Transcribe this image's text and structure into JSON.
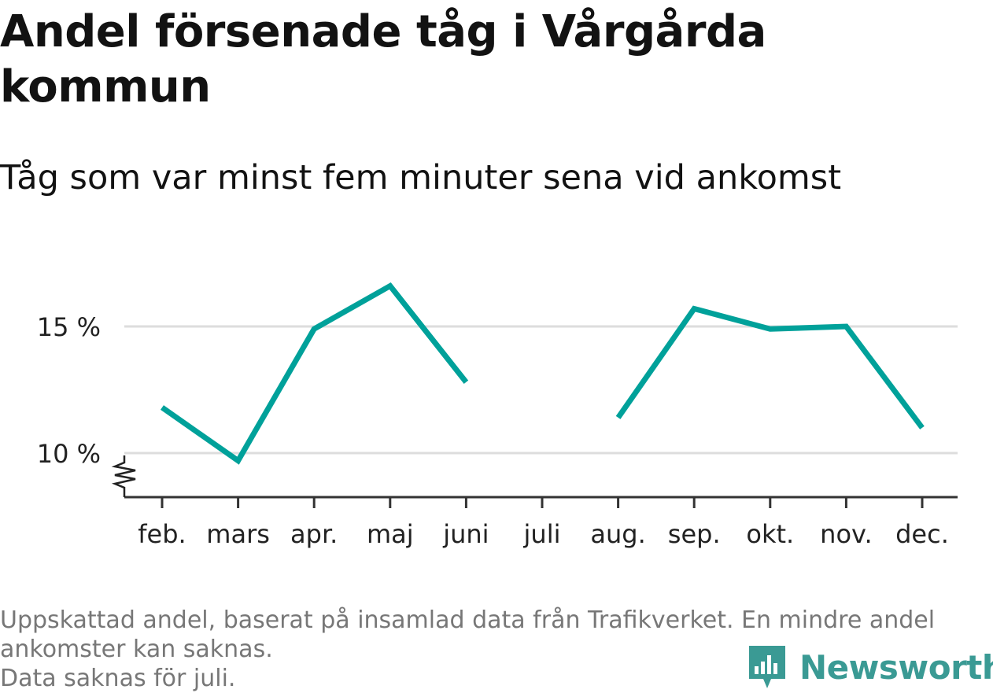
{
  "title": "Andel försenade tåg i Vårgårda kommun",
  "subtitle": "Tåg som var minst fem minuter sena vid ankomst",
  "footnote": {
    "line1": "Uppskattad andel, baserat på insamlad data från Trafikverket. En mindre andel",
    "line2": "ankomster kan saknas.",
    "line3": "Data saknas för juli."
  },
  "logo": {
    "text": "Newsworthy",
    "icon": "newsworthy-bar-chart-icon",
    "color": "#3a9a94"
  },
  "colors": {
    "line": "#00a19a",
    "grid": "#dddddd",
    "axis": "#333333"
  },
  "chart_data": {
    "type": "line",
    "categories": [
      "feb.",
      "mars",
      "apr.",
      "maj",
      "juni",
      "juli",
      "aug.",
      "sep.",
      "okt.",
      "nov.",
      "dec."
    ],
    "series": [
      {
        "values": [
          11.8,
          9.7,
          14.9,
          16.6,
          12.8,
          null,
          11.4,
          15.7,
          14.9,
          15.0,
          11.0
        ]
      }
    ],
    "yticks": [
      10,
      15
    ],
    "ytick_labels": [
      "10 %",
      "15 %"
    ],
    "ylim": [
      8.3,
      17.5
    ],
    "grid": true,
    "y_axis_break": true,
    "xlabel": "",
    "ylabel": ""
  }
}
